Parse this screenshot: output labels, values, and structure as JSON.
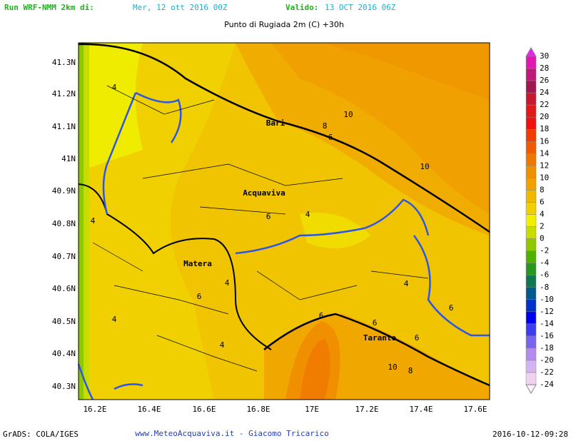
{
  "header": {
    "run": "Run WRF-NMM 2km di:",
    "init": "Mer, 12 ott 2016 00Z",
    "valid_label": "Valido:",
    "valid": "13 OCT 2016 06Z"
  },
  "title": "Punto di Rugiada 2m (C) +30h",
  "lon_labels": [
    "16.2E",
    "16.4E",
    "16.6E",
    "16.8E",
    "17E",
    "17.2E",
    "17.4E",
    "17.6E"
  ],
  "lat_labels": [
    "41.3N",
    "41.2N",
    "41.1N",
    "41N",
    "40.9N",
    "40.8N",
    "40.7N",
    "40.6N",
    "40.5N",
    "40.4N",
    "40.3N"
  ],
  "colorbar": {
    "labels": [
      "30",
      "28",
      "26",
      "24",
      "22",
      "20",
      "18",
      "16",
      "14",
      "12",
      "10",
      "8",
      "6",
      "4",
      "2",
      "0",
      "-2",
      "-4",
      "-6",
      "-8",
      "-10",
      "-12",
      "-14",
      "-16",
      "-18",
      "-20",
      "-22",
      "-24"
    ],
    "colors": [
      "#f01cf0",
      "#e018b0",
      "#c01878",
      "#a01850",
      "#c81830",
      "#e01818",
      "#f01010",
      "#f03c00",
      "#f05a00",
      "#f07800",
      "#f09000",
      "#f0a000",
      "#f0b800",
      "#f0d000",
      "#f0f000",
      "#c8dc00",
      "#90c800",
      "#50b000",
      "#289620",
      "#107850",
      "#005a8c",
      "#0032c8",
      "#0000f0",
      "#3c3cf0",
      "#7864f0",
      "#b48cf0",
      "#d2b4f0",
      "#f0d2f0",
      "#fff0ff"
    ]
  },
  "cities": [
    "Bari",
    "Acquaviva",
    "Matera",
    "Taranto"
  ],
  "contour_labels": [
    "4",
    "10",
    "8",
    "6",
    "10",
    "4",
    "4",
    "6",
    "4",
    "6",
    "4",
    "4",
    "6",
    "6",
    "4",
    "6",
    "6",
    "10",
    "8"
  ],
  "footer": {
    "left": "GrADS: COLA/IGES",
    "center": "www.MeteoAcquaviva.it  -  Giacomo Tricarico",
    "right": "2016-10-12-09:28"
  }
}
